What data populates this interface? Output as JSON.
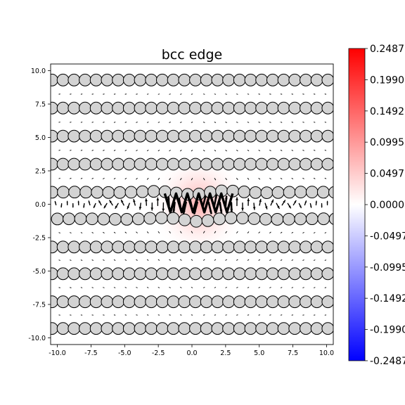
{
  "chart_data": {
    "type": "scatter",
    "title": "bcc edge",
    "xlabel": "",
    "ylabel": "",
    "xlim": [
      -10.5,
      10.5
    ],
    "ylim": [
      -10.5,
      10.5
    ],
    "x_ticks": [
      "-10.0",
      "-7.5",
      "-5.0",
      "-2.5",
      "0.0",
      "2.5",
      "5.0",
      "7.5",
      "10.0"
    ],
    "y_ticks": [
      "10.0",
      "7.5",
      "5.0",
      "2.5",
      "0.0",
      "-2.5",
      "-5.0",
      "-7.5",
      "-10.0"
    ],
    "grid": false,
    "colorbar": {
      "colormap": "bwr",
      "min": -0.2487,
      "max": 0.2487,
      "tick_labels": [
        "0.2487",
        "0.1990",
        "0.1492",
        "0.0995",
        "0.0497",
        "0.0000",
        "-0.0497",
        "-0.0995",
        "-0.1492",
        "-0.1990",
        "-0.2487"
      ]
    },
    "atom_rows": [
      {
        "y": 9.3,
        "x_start": -10.4,
        "spacing": 0.82,
        "count": 26
      },
      {
        "y": 7.2,
        "x_start": -10.4,
        "spacing": 0.82,
        "count": 26
      },
      {
        "y": 5.1,
        "x_start": -10.4,
        "spacing": 0.82,
        "count": 26
      },
      {
        "y": 3.0,
        "x_start": -10.4,
        "spacing": 0.82,
        "count": 26
      },
      {
        "y": 0.9,
        "x_start": -10.4,
        "spacing": 0.84,
        "count": 26
      },
      {
        "y": -1.1,
        "x_start": -10.0,
        "spacing": 0.86,
        "count": 25
      },
      {
        "y": -3.2,
        "x_start": -10.4,
        "spacing": 0.82,
        "count": 26
      },
      {
        "y": -5.2,
        "x_start": -10.4,
        "spacing": 0.82,
        "count": 26
      },
      {
        "y": -7.3,
        "x_start": -10.4,
        "spacing": 0.82,
        "count": 26
      },
      {
        "y": -9.3,
        "x_start": -10.4,
        "spacing": 0.82,
        "count": 26
      }
    ],
    "strain_field": {
      "center_x": 0.5,
      "center_y": 0.0,
      "peak_value": 0.2487
    },
    "dislocation_core": {
      "x": 0.5,
      "y": 0.0
    }
  }
}
